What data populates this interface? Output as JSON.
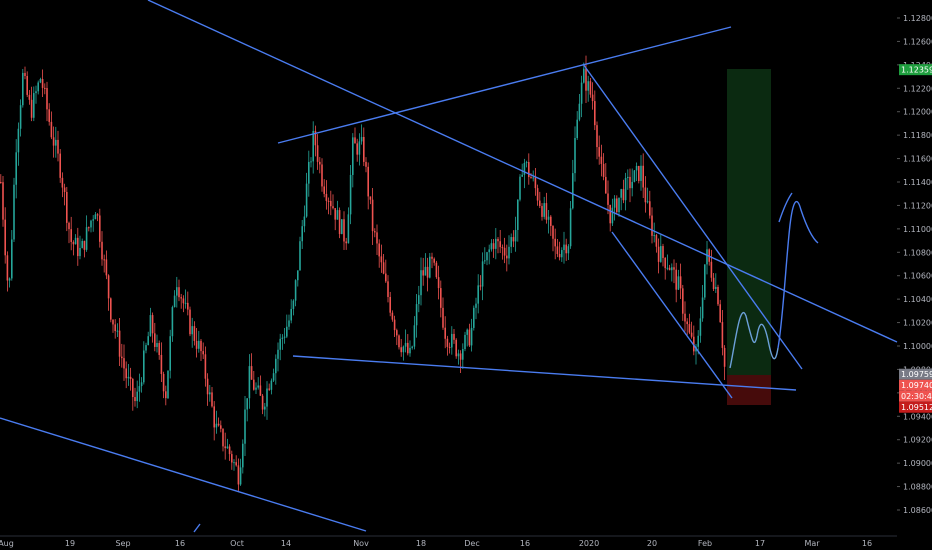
{
  "chart_data": {
    "type": "candlestick",
    "instrument_hint": "forex price chart with drawn trendlines and long position",
    "ylim": [
      1.0845,
      1.1285
    ],
    "y_ticks": [
      "1.12800",
      "1.12600",
      "1.12400",
      "1.12200",
      "1.12000",
      "1.11800",
      "1.11600",
      "1.11400",
      "1.11200",
      "1.11000",
      "1.10800",
      "1.10600",
      "1.10400",
      "1.10200",
      "1.10000",
      "1.09800",
      "1.09600",
      "1.09400",
      "1.09200",
      "1.09000",
      "1.08800",
      "1.08600"
    ],
    "x_ticks": [
      "Aug",
      "19",
      "Sep",
      "16",
      "Oct",
      "14",
      "Nov",
      "18",
      "Dec",
      "16",
      "2020",
      "20",
      "Feb",
      "17",
      "Mar",
      "16"
    ],
    "price_tags": [
      {
        "label": "1.12359",
        "value": 1.12359,
        "color": "#1e9e3e"
      },
      {
        "label": "1.09759",
        "value": 1.09759,
        "color": "#787b86"
      },
      {
        "label": "1.09740",
        "value": 1.0974,
        "color": "#ef5350"
      },
      {
        "label": "02:30:44",
        "value": 1.0963,
        "color": "#ef5350"
      },
      {
        "label": "1.09512",
        "value": 1.09512,
        "color": "#c41c1c"
      }
    ],
    "position": {
      "entry": 1.09759,
      "target": 1.12359,
      "stop": 1.09512
    },
    "bull_color": "#26a69a",
    "bear_color": "#ef5350",
    "drawing_color": "#4a7cf0"
  }
}
